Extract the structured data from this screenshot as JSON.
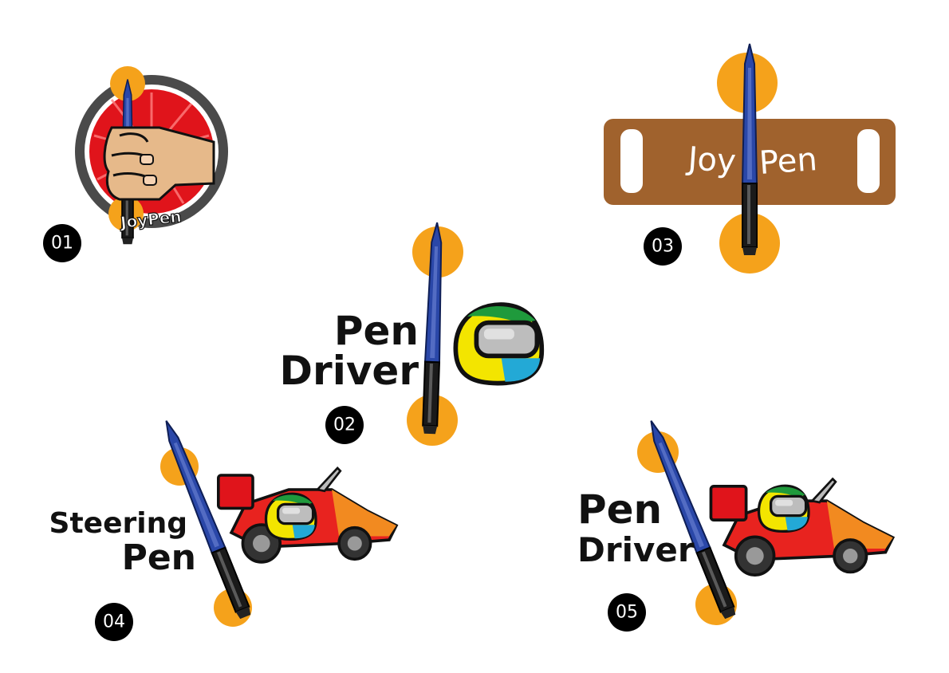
{
  "colors": {
    "orange": "#f5a21b",
    "pen_blue": "#23409a",
    "wood": "#a0622d",
    "red": "#e0141b",
    "black_badge": "#000000",
    "helmet_green": "#1f9a3c",
    "helmet_yellow": "#f3e500",
    "helmet_cyan": "#23a9d6"
  },
  "logos": [
    {
      "number": "01",
      "text": "JoyPen"
    },
    {
      "number": "02",
      "line1": "Pen",
      "line2": "Driver"
    },
    {
      "number": "03",
      "word1": "Joy",
      "word2": "Pen"
    },
    {
      "number": "04",
      "line1": "Steering",
      "line2": "Pen"
    },
    {
      "number": "05",
      "line1": "Pen",
      "line2": "Driver"
    }
  ]
}
